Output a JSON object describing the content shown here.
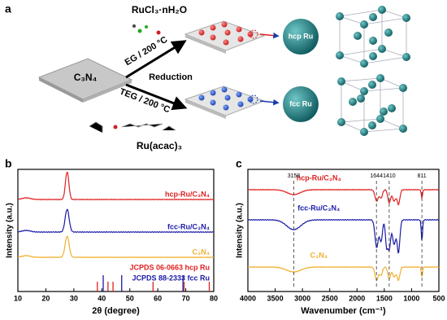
{
  "panel_labels": [
    "a",
    "b",
    "c"
  ],
  "scheme": {
    "support": "C₃N₄",
    "precursor_top": "RuCl₃·nH₂O",
    "condition_top": "EG / 200 °C",
    "step": "Reduction",
    "condition_bottom": "TEG / 200 °C",
    "precursor_bottom": "Ru(acac)₃",
    "product_top": "hcp Ru",
    "product_bottom": "fcc Ru"
  },
  "chart_data": [
    {
      "type": "line",
      "xlabel": "2θ (degree)",
      "ylabel": "Intensity (a.u.)",
      "xlim": [
        10,
        80
      ],
      "xticks": [
        10,
        20,
        30,
        40,
        50,
        60,
        70,
        80
      ],
      "series": [
        {
          "name": "hcp-Ru/C₃N₄",
          "color": "#e02020"
        },
        {
          "name": "fcc-Ru/C₃N₄",
          "color": "#1a1aa8"
        },
        {
          "name": "C₃N₄",
          "color": "#f0b030"
        }
      ],
      "reference": [
        {
          "name": "JCPDS 06-0663 hcp Ru",
          "color": "#e02020",
          "positions": [
            38.4,
            42.2,
            44.0,
            58.3,
            69.4,
            78.4
          ]
        },
        {
          "name": "JCPDS 88-2333 fcc Ru",
          "color": "#1a1aa8",
          "positions": [
            40.5,
            47.1,
            69.0
          ]
        }
      ]
    },
    {
      "type": "line",
      "xlabel": "Wavenumber (cm⁻¹)",
      "ylabel": "Intensity (a.u.)",
      "xlim": [
        4000,
        500
      ],
      "xticks": [
        4000,
        3500,
        3000,
        2500,
        2000,
        1500,
        1000,
        500
      ],
      "series": [
        {
          "name": "hcp-Ru/C₃N₄",
          "color": "#e02020"
        },
        {
          "name": "fcc-Ru/C₃N₄",
          "color": "#1a1aa8"
        },
        {
          "name": "C₃N₄",
          "color": "#f0b030"
        }
      ],
      "annotations": [
        3158,
        1644,
        1410,
        811
      ]
    }
  ]
}
